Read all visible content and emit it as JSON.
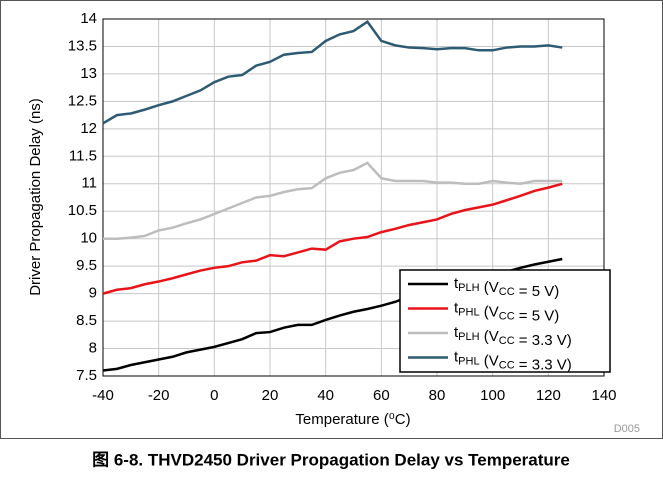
{
  "chart_data": {
    "type": "line",
    "caption": "图 6-8. THVD2450 Driver Propagation Delay vs Temperature",
    "xlabel": "Temperature (⁰C)",
    "ylabel": "Driver Propagation Delay (ns)",
    "note": "D005",
    "x": [
      -40,
      -35,
      -30,
      -25,
      -20,
      -15,
      -10,
      -5,
      0,
      5,
      10,
      15,
      20,
      25,
      30,
      35,
      40,
      45,
      50,
      55,
      60,
      65,
      70,
      75,
      80,
      85,
      90,
      95,
      100,
      105,
      110,
      115,
      120,
      125
    ],
    "series": [
      {
        "name": "tPLH (VCC = 5 V)",
        "color": "#000000",
        "values": [
          7.6,
          7.63,
          7.7,
          7.75,
          7.8,
          7.85,
          7.93,
          7.98,
          8.03,
          8.1,
          8.17,
          8.28,
          8.3,
          8.38,
          8.43,
          8.43,
          8.52,
          8.6,
          8.67,
          8.72,
          8.78,
          8.85,
          8.95,
          9.0,
          9.06,
          9.12,
          9.2,
          9.27,
          9.33,
          9.4,
          9.47,
          9.53,
          9.58,
          9.63
        ]
      },
      {
        "name": "tPHL (VCC = 5 V)",
        "color": "#e8141a",
        "values": [
          9.0,
          9.07,
          9.1,
          9.17,
          9.22,
          9.28,
          9.35,
          9.42,
          9.47,
          9.5,
          9.57,
          9.6,
          9.7,
          9.68,
          9.75,
          9.82,
          9.8,
          9.95,
          10.0,
          10.03,
          10.12,
          10.18,
          10.25,
          10.3,
          10.35,
          10.45,
          10.52,
          10.57,
          10.62,
          10.7,
          10.78,
          10.87,
          10.93,
          11.0
        ]
      },
      {
        "name": "tPLH (VCC = 3.3 V)",
        "color": "#bdbdbd",
        "values": [
          10.0,
          10.0,
          10.02,
          10.05,
          10.15,
          10.2,
          10.28,
          10.35,
          10.45,
          10.55,
          10.65,
          10.75,
          10.78,
          10.85,
          10.9,
          10.92,
          11.1,
          11.2,
          11.25,
          11.38,
          11.1,
          11.05,
          11.05,
          11.05,
          11.02,
          11.02,
          11.0,
          11.0,
          11.05,
          11.02,
          11.0,
          11.05,
          11.05,
          11.05
        ]
      },
      {
        "name": "tPHL (VCC = 3.3 V)",
        "color": "#2e5b74",
        "values": [
          12.1,
          12.25,
          12.28,
          12.35,
          12.43,
          12.5,
          12.6,
          12.7,
          12.85,
          12.95,
          12.98,
          13.15,
          13.22,
          13.35,
          13.38,
          13.4,
          13.6,
          13.72,
          13.78,
          13.95,
          13.6,
          13.52,
          13.48,
          13.47,
          13.45,
          13.47,
          13.47,
          13.43,
          13.43,
          13.48,
          13.5,
          13.5,
          13.52,
          13.48
        ]
      }
    ],
    "xlim": [
      -40,
      140
    ],
    "xticks": [
      -40,
      -20,
      0,
      20,
      40,
      60,
      80,
      100,
      120,
      140
    ],
    "ylim": [
      7.5,
      14
    ],
    "yticks": [
      7.5,
      8,
      8.5,
      9,
      9.5,
      10,
      10.5,
      11,
      11.5,
      12,
      12.5,
      13,
      13.5,
      14
    ],
    "grid": true,
    "legend": "lower right"
  }
}
